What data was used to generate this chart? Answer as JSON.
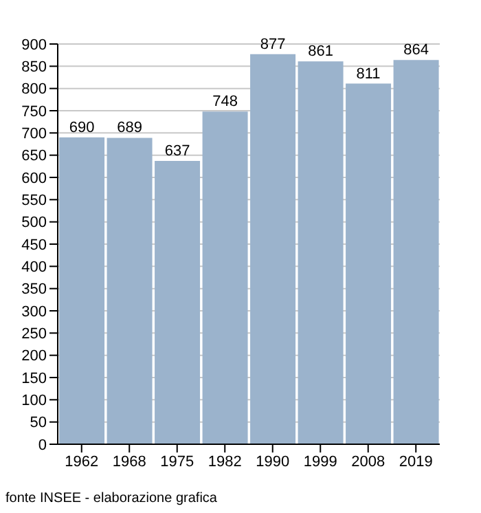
{
  "chart_data": {
    "type": "bar",
    "categories": [
      "1962",
      "1968",
      "1975",
      "1982",
      "1990",
      "1999",
      "2008",
      "2019"
    ],
    "values": [
      690,
      689,
      637,
      748,
      877,
      861,
      811,
      864
    ],
    "color": "#9bb3cc",
    "data_labels": true,
    "ylim": [
      0,
      900
    ],
    "yticks": [
      0,
      50,
      100,
      150,
      200,
      250,
      300,
      350,
      400,
      450,
      500,
      550,
      600,
      650,
      700,
      750,
      800,
      850,
      900
    ],
    "grid": "y",
    "annotations": [
      "fonte INSEE - elaborazione grafica"
    ]
  }
}
